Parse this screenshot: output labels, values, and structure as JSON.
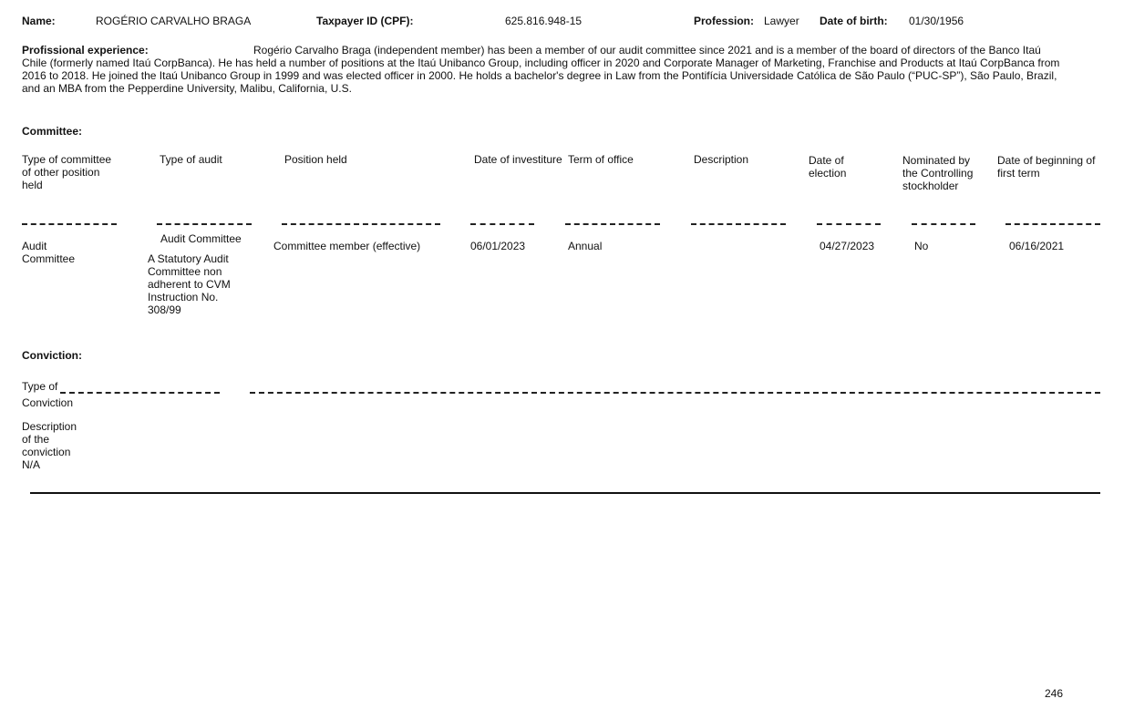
{
  "header": {
    "name_label": "Name:",
    "name_value": "ROGÉRIO CARVALHO BRAGA",
    "taxpayer_label": "Taxpayer ID (CPF):",
    "taxpayer_value": "625.816.948-15",
    "profession_label": "Profession:",
    "profession_value": "Lawyer",
    "dob_label": "Date of birth:",
    "dob_value": "01/30/1956"
  },
  "experience": {
    "label": "Profissional experience:",
    "lines": [
      "Rogério Carvalho Braga (independent member) has been a member of our audit committee since 2021 and is a member of the board of directors of the Banco Itaú",
      "Chile (formerly named Itaú CorpBanca). He has held a number of positions at the Itaú Unibanco Group, including officer in 2020 and Corporate Manager of Marketing, Franchise and Products at Itaú CorpBanca from",
      "2016 to 2018. He joined the Itaú Unibanco Group in 1999 and was elected officer in 2000. He holds a bachelor's degree in Law from the Pontifícia Universidade Católica de São Paulo (“PUC-SP”), São Paulo, Brazil,",
      "and an MBA from the Pepperdine University, Malibu, California, U.S."
    ]
  },
  "committee": {
    "title": "Committee:",
    "columns": [
      "Type of committee of other position held",
      "Type of audit",
      "Position held",
      "Date of investiture",
      "Term of office",
      "Description",
      "Date of election",
      "Nominated by the Controlling stockholder",
      "Date of beginning of first term"
    ],
    "row": {
      "type_of_committee": "Audit Committee",
      "type_of_audit": "Audit Committee",
      "type_of_audit_detail": "A Statutory Audit Committee non adherent to CVM Instruction No. 308/99",
      "position_held": "Committee member (effective)",
      "date_of_investiture": "06/01/2023",
      "term_of_office": "Annual",
      "description": "",
      "date_of_election": "04/27/2023",
      "nominated_by_controlling": "No",
      "date_first_term": "06/16/2021"
    }
  },
  "conviction": {
    "title": "Conviction:",
    "type_label": "Type of Conviction",
    "description_label": "Description of the conviction",
    "description_value": "N/A"
  },
  "footer": {
    "page_number": "246"
  }
}
